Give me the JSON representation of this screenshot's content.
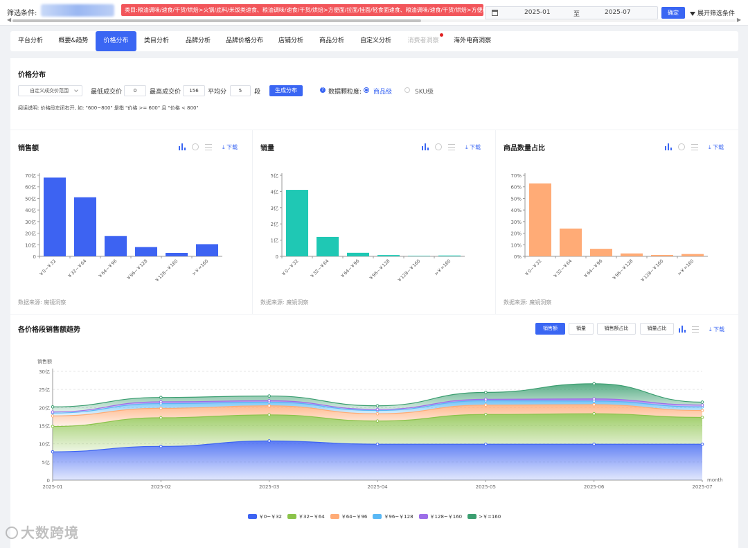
{
  "filter": {
    "label": "筛选条件:",
    "tag": "类目:粮油调味/速食/干货/烘焙>火锅/底料/米饭类速食、粮油调味/速食/干货/烘焙>方便面/拉面/挂面/轻食面速食、粮油调味/速食/干货/烘焙>方便粉丝/米线/凉皮/酸辣粉",
    "date_start": "2025-01",
    "date_to": "至",
    "date_end": "2025-07",
    "confirm": "确定",
    "expand": "展开筛选条件"
  },
  "tabs": [
    {
      "label": "平台分析",
      "state": "normal"
    },
    {
      "label": "概要&趋势",
      "state": "normal"
    },
    {
      "label": "价格分布",
      "state": "active"
    },
    {
      "label": "类目分析",
      "state": "normal"
    },
    {
      "label": "品牌分析",
      "state": "normal"
    },
    {
      "label": "品牌价格分布",
      "state": "normal"
    },
    {
      "label": "店铺分析",
      "state": "normal"
    },
    {
      "label": "商品分析",
      "state": "normal"
    },
    {
      "label": "自定义分析",
      "state": "normal"
    },
    {
      "label": "消费者洞察",
      "state": "disabled"
    },
    {
      "label": "海外电商洞察",
      "state": "normal"
    }
  ],
  "price_dist": {
    "title": "价格分布",
    "range_select": "自定义成交价范围",
    "min_label": "最低成交价",
    "min_value": "0",
    "max_label": "最高成交价",
    "max_value": "156",
    "avg_label": "平均分",
    "segments_value": "5",
    "segments_unit": "段",
    "generate": "生成分布",
    "granularity_label": "数据颗粒度:",
    "opt_item": "商品级",
    "opt_sku": "SKU级",
    "note": "阅读说明: 价格段左闭右开, 如: \"600~800\" 是指 \"价格 >= 600\" 且 \"价格 < 800\""
  },
  "cards": {
    "download": "下载",
    "source": "数据来源: 魔镜洞察"
  },
  "chart_data": [
    {
      "type": "bar",
      "title": "销售额",
      "categories": [
        "￥0~￥32",
        "￥32~￥64",
        "￥64~￥96",
        "￥96~￥128",
        "￥128~￥160",
        ">￥=160"
      ],
      "values": [
        68,
        51,
        17.5,
        8,
        3,
        10.5
      ],
      "ylim": [
        0,
        70
      ],
      "yticks": [
        "0",
        "10亿",
        "20亿",
        "30亿",
        "40亿",
        "50亿",
        "60亿",
        "70亿"
      ],
      "color": "#3d63f2"
    },
    {
      "type": "bar",
      "title": "销量",
      "categories": [
        "￥0~￥32",
        "￥32~￥64",
        "￥64~￥96",
        "￥96~￥128",
        "￥128~￥160",
        ">￥=160"
      ],
      "values": [
        4.1,
        1.2,
        0.22,
        0.08,
        0.03,
        0.05
      ],
      "ylim": [
        0,
        5
      ],
      "yticks": [
        "0",
        "1亿",
        "2亿",
        "3亿",
        "4亿",
        "5亿"
      ],
      "color": "#1fc8b4"
    },
    {
      "type": "bar",
      "title": "商品数量占比",
      "categories": [
        "￥0~￥32",
        "￥32~￥64",
        "￥64~￥96",
        "￥96~￥128",
        "￥128~￥160",
        ">￥=160"
      ],
      "values": [
        63,
        24,
        6.5,
        2.5,
        1.2,
        2
      ],
      "ylim": [
        0,
        70
      ],
      "yticks": [
        "0%",
        "10%",
        "20%",
        "30%",
        "40%",
        "50%",
        "60%",
        "70%"
      ],
      "color": "#ffab76"
    },
    {
      "type": "area",
      "title": "各价格段销售额趋势",
      "ylabel": "销售额",
      "xlabel": "month",
      "x": [
        "2025-01",
        "2025-02",
        "2025-03",
        "2025-04",
        "2025-05",
        "2025-06",
        "2025-07"
      ],
      "ylim": [
        0,
        30
      ],
      "yticks": [
        "0",
        "5亿",
        "10亿",
        "15亿",
        "20亿",
        "25亿",
        "30亿"
      ],
      "series": [
        {
          "name": "￥0~￥32",
          "values": [
            7.8,
            9.3,
            10.8,
            9.9,
            9.9,
            9.9,
            9.9
          ],
          "color": "#3d63f2"
        },
        {
          "name": "￥32~￥64",
          "values": [
            7.0,
            7.9,
            7.2,
            6.4,
            8.2,
            8.4,
            7.4
          ],
          "color": "#8bc34a"
        },
        {
          "name": "￥64~￥96",
          "values": [
            2.9,
            2.6,
            2.5,
            2.0,
            2.6,
            2.5,
            1.9
          ],
          "color": "#ffab76"
        },
        {
          "name": "￥96~￥128",
          "values": [
            0.8,
            1.3,
            1.0,
            0.9,
            1.2,
            1.0,
            1.0
          ],
          "color": "#5ab8f5"
        },
        {
          "name": "￥128~￥160",
          "values": [
            0.3,
            0.5,
            0.4,
            0.3,
            0.4,
            0.6,
            0.5
          ],
          "color": "#9c6ee8"
        },
        {
          "name": ">￥=160",
          "values": [
            1.4,
            1.2,
            1.3,
            1.0,
            1.9,
            4.2,
            0.8
          ],
          "color": "#3b9e70"
        }
      ]
    }
  ],
  "trend": {
    "buttons": [
      "销售额",
      "销量",
      "销售额占比",
      "销量占比"
    ]
  },
  "watermark": "大数跨境"
}
